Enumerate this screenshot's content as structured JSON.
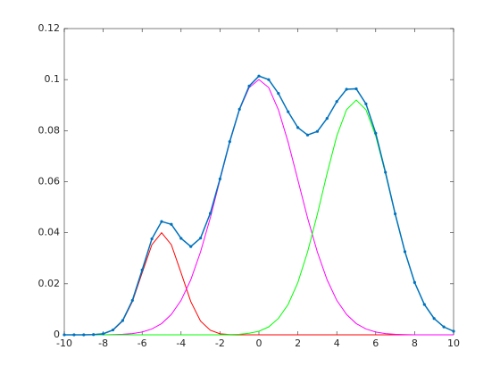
{
  "chart_data": {
    "type": "line",
    "x": [
      -10,
      -9.5,
      -9,
      -8.5,
      -8,
      -7.5,
      -7,
      -6.5,
      -6,
      -5.5,
      -5,
      -4.5,
      -4,
      -3.5,
      -3,
      -2.5,
      -2,
      -1.5,
      -1,
      -0.5,
      0,
      0.5,
      1,
      1.5,
      2,
      2.5,
      3,
      3.5,
      4,
      4.5,
      5,
      5.5,
      6,
      6.5,
      7,
      7.5,
      8,
      8.5,
      9,
      9.5,
      10
    ],
    "series": [
      {
        "color": "#ff0000",
        "markers": false,
        "values": [
          0,
          0,
          0,
          0.0001,
          0.0004,
          0.0018,
          0.0054,
          0.013,
          0.0243,
          0.0353,
          0.04,
          0.0353,
          0.0243,
          0.013,
          0.0054,
          0.0018,
          0.0004,
          0.0001,
          0,
          0,
          0,
          0,
          0,
          0,
          0,
          0,
          0,
          0,
          0,
          0,
          0,
          0,
          0,
          0,
          0,
          0,
          0,
          0,
          0,
          0,
          0
        ]
      },
      {
        "color": "#ff00ff",
        "markers": false,
        "values": [
          0,
          0,
          0,
          0,
          0,
          0.0001,
          0.0002,
          0.0005,
          0.0011,
          0.0023,
          0.0044,
          0.008,
          0.0135,
          0.0216,
          0.0325,
          0.0458,
          0.0607,
          0.0755,
          0.0882,
          0.0969,
          0.1,
          0.0969,
          0.0882,
          0.0755,
          0.0607,
          0.0458,
          0.0325,
          0.0216,
          0.0135,
          0.008,
          0.0044,
          0.0023,
          0.0011,
          0.0005,
          0.0002,
          0.0001,
          0,
          0,
          0,
          0,
          0
        ]
      },
      {
        "color": "#00ff00",
        "markers": false,
        "values": [
          0,
          0,
          0,
          0,
          0,
          0,
          0,
          0,
          0,
          0,
          0,
          0,
          0,
          0,
          0,
          0,
          0,
          0.0001,
          0.0002,
          0.0006,
          0.0014,
          0.0031,
          0.0064,
          0.0119,
          0.0205,
          0.0325,
          0.0472,
          0.0632,
          0.0779,
          0.0882,
          0.092,
          0.0882,
          0.0779,
          0.0632,
          0.0472,
          0.0325,
          0.0205,
          0.0119,
          0.0064,
          0.0031,
          0.0014
        ]
      },
      {
        "color": "#0072bd",
        "markers": true,
        "values": [
          0,
          0,
          0,
          0.0001,
          0.0004,
          0.0019,
          0.0056,
          0.0135,
          0.0254,
          0.0376,
          0.0444,
          0.0433,
          0.0378,
          0.0346,
          0.0379,
          0.0476,
          0.0611,
          0.0757,
          0.0884,
          0.0975,
          0.1014,
          0.1,
          0.0946,
          0.0874,
          0.0812,
          0.0783,
          0.0797,
          0.0848,
          0.0914,
          0.0962,
          0.0964,
          0.0905,
          0.079,
          0.0637,
          0.0474,
          0.0326,
          0.0205,
          0.0119,
          0.0064,
          0.0031,
          0.0014
        ]
      }
    ],
    "xlim": [
      -10,
      10
    ],
    "xticks": [
      -10,
      -8,
      -6,
      -4,
      -2,
      0,
      2,
      4,
      6,
      8,
      10
    ],
    "ylim": [
      0,
      0.12
    ],
    "yticks": [
      0,
      0.02,
      0.04,
      0.06,
      0.08,
      0.1,
      0.12
    ],
    "grid": false
  }
}
